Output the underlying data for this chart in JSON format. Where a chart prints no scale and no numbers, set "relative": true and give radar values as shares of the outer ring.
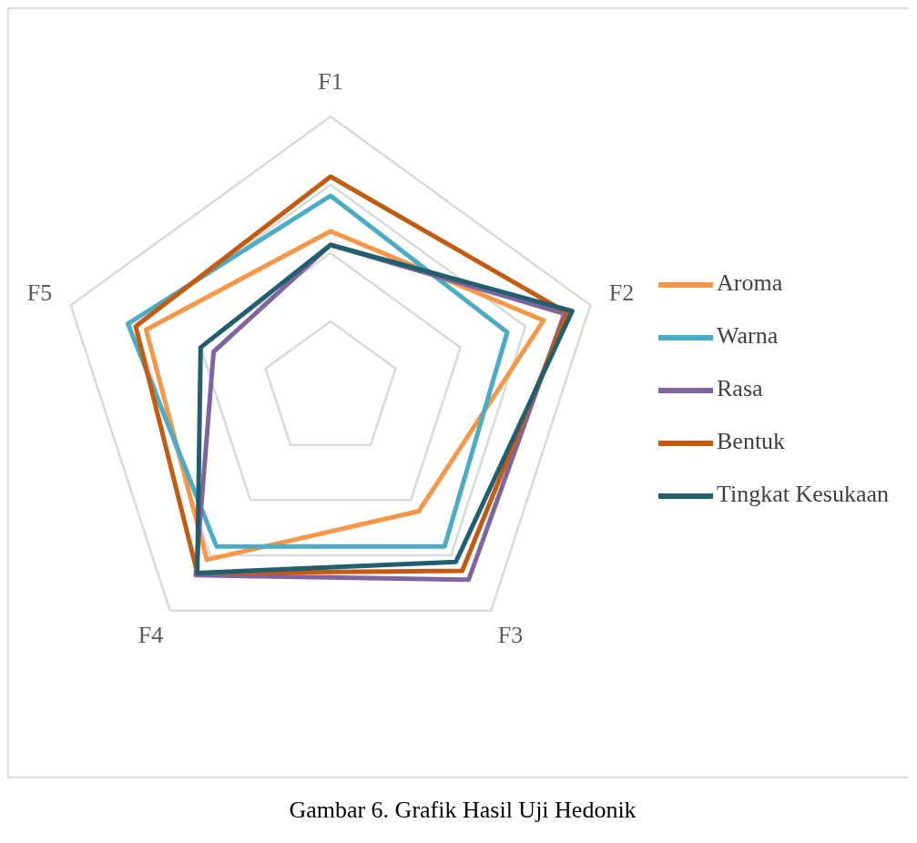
{
  "chart_data": {
    "type": "radar",
    "relative": true,
    "categories": [
      "F1",
      "F2",
      "F3",
      "F4",
      "F5"
    ],
    "series": [
      {
        "name": "Aroma",
        "color": "#f79646",
        "values": [
          0.58,
          0.82,
          0.55,
          0.77,
          0.71
        ]
      },
      {
        "name": "Warna",
        "color": "#4bacc6",
        "values": [
          0.71,
          0.68,
          0.71,
          0.71,
          0.78
        ]
      },
      {
        "name": "Rasa",
        "color": "#8064a2",
        "values": [
          0.53,
          0.9,
          0.86,
          0.84,
          0.45
        ]
      },
      {
        "name": "Bentuk",
        "color": "#c55a11",
        "values": [
          0.78,
          0.91,
          0.82,
          0.83,
          0.75
        ]
      },
      {
        "name": "Tingkat Kesukaan",
        "color": "#215f6e",
        "values": [
          0.53,
          0.93,
          0.78,
          0.83,
          0.5
        ]
      }
    ],
    "legend": "right",
    "grid": true,
    "marker": "none",
    "line_style": "solid",
    "annotations": [
      "Gambar 6. Grafik Hasil Uji Hedonik"
    ]
  }
}
